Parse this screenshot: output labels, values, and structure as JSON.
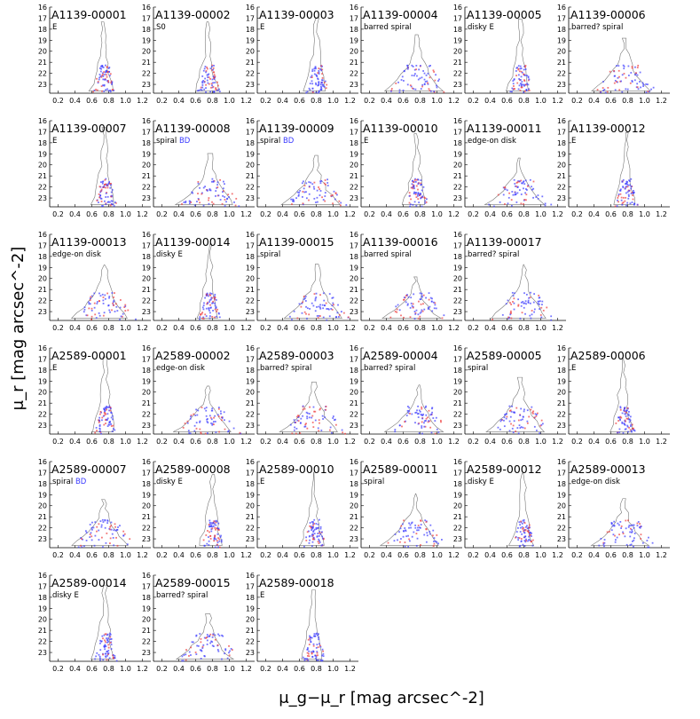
{
  "figure": {
    "ylabel": "μ_r [mag arcsec^-2]",
    "xlabel": "μ_g−μ_r [mag arcsec^-2]",
    "xticks": [
      "0.2",
      "0.4",
      "0.6",
      "0.8",
      "1.0",
      "1.2"
    ],
    "yticks": [
      "16",
      "17",
      "18",
      "19",
      "20",
      "21",
      "22",
      "23"
    ],
    "colors": {
      "red": "#ee3b3b",
      "blue": "#3a3aff",
      "contour": "#777777"
    }
  },
  "chart_data": [
    {
      "type": "scatter",
      "title": "A1139-00001",
      "galaxy_type": "E",
      "xlim": [
        0.1,
        1.3
      ],
      "ylim": [
        23.8,
        16
      ]
    },
    {
      "type": "scatter",
      "title": "A1139-00002",
      "galaxy_type": "S0",
      "xlim": [
        0.1,
        1.3
      ],
      "ylim": [
        23.8,
        16
      ]
    },
    {
      "type": "scatter",
      "title": "A1139-00003",
      "galaxy_type": "E",
      "xlim": [
        0.1,
        1.3
      ],
      "ylim": [
        23.8,
        16
      ]
    },
    {
      "type": "scatter",
      "title": "A1139-00004",
      "galaxy_type": "barred spiral",
      "xlim": [
        0.1,
        1.3
      ],
      "ylim": [
        23.8,
        16
      ]
    },
    {
      "type": "scatter",
      "title": "A1139-00005",
      "galaxy_type": "disky E",
      "xlim": [
        0.1,
        1.3
      ],
      "ylim": [
        23.8,
        16
      ]
    },
    {
      "type": "scatter",
      "title": "A1139-00006",
      "galaxy_type": "barred? spiral",
      "xlim": [
        0.1,
        1.3
      ],
      "ylim": [
        23.8,
        16
      ]
    },
    {
      "type": "scatter",
      "title": "A1139-00007",
      "galaxy_type": "E",
      "xlim": [
        0.1,
        1.3
      ],
      "ylim": [
        23.8,
        16
      ]
    },
    {
      "type": "scatter",
      "title": "A1139-00008",
      "galaxy_type": "spiral",
      "bd": "BD",
      "xlim": [
        0.1,
        1.3
      ],
      "ylim": [
        23.8,
        16
      ]
    },
    {
      "type": "scatter",
      "title": "A1139-00009",
      "galaxy_type": "spiral",
      "bd": "BD",
      "xlim": [
        0.1,
        1.3
      ],
      "ylim": [
        23.8,
        16
      ]
    },
    {
      "type": "scatter",
      "title": "A1139-00010",
      "galaxy_type": "E",
      "xlim": [
        0.1,
        1.3
      ],
      "ylim": [
        23.8,
        16
      ]
    },
    {
      "type": "scatter",
      "title": "A1139-00011",
      "galaxy_type": "edge-on disk",
      "xlim": [
        0.1,
        1.3
      ],
      "ylim": [
        23.8,
        16
      ]
    },
    {
      "type": "scatter",
      "title": "A1139-00012",
      "galaxy_type": "E",
      "xlim": [
        0.1,
        1.3
      ],
      "ylim": [
        23.8,
        16
      ]
    },
    {
      "type": "scatter",
      "title": "A1139-00013",
      "galaxy_type": "edge-on disk",
      "xlim": [
        0.1,
        1.3
      ],
      "ylim": [
        23.8,
        16
      ]
    },
    {
      "type": "scatter",
      "title": "A1139-00014",
      "galaxy_type": "disky E",
      "xlim": [
        0.1,
        1.3
      ],
      "ylim": [
        23.8,
        16
      ]
    },
    {
      "type": "scatter",
      "title": "A1139-00015",
      "galaxy_type": "spiral",
      "xlim": [
        0.1,
        1.3
      ],
      "ylim": [
        23.8,
        16
      ]
    },
    {
      "type": "scatter",
      "title": "A1139-00016",
      "galaxy_type": "barred spiral",
      "xlim": [
        0.1,
        1.3
      ],
      "ylim": [
        23.8,
        16
      ]
    },
    {
      "type": "scatter",
      "title": "A1139-00017",
      "galaxy_type": "barred? spiral",
      "xlim": [
        0.1,
        1.3
      ],
      "ylim": [
        23.8,
        16
      ]
    },
    {
      "type": "scatter",
      "title": "A2589-00001",
      "galaxy_type": "E",
      "xlim": [
        0.1,
        1.3
      ],
      "ylim": [
        23.8,
        16
      ]
    },
    {
      "type": "scatter",
      "title": "A2589-00002",
      "galaxy_type": "edge-on disk",
      "xlim": [
        0.1,
        1.3
      ],
      "ylim": [
        23.8,
        16
      ]
    },
    {
      "type": "scatter",
      "title": "A2589-00003",
      "galaxy_type": "barred? spiral",
      "xlim": [
        0.1,
        1.3
      ],
      "ylim": [
        23.8,
        16
      ]
    },
    {
      "type": "scatter",
      "title": "A2589-00004",
      "galaxy_type": "barred? spiral",
      "xlim": [
        0.1,
        1.3
      ],
      "ylim": [
        23.8,
        16
      ]
    },
    {
      "type": "scatter",
      "title": "A2589-00005",
      "galaxy_type": "spiral",
      "xlim": [
        0.1,
        1.3
      ],
      "ylim": [
        23.8,
        16
      ]
    },
    {
      "type": "scatter",
      "title": "A2589-00006",
      "galaxy_type": "E",
      "xlim": [
        0.1,
        1.3
      ],
      "ylim": [
        23.8,
        16
      ]
    },
    {
      "type": "scatter",
      "title": "A2589-00007",
      "galaxy_type": "spiral",
      "bd": "BD",
      "xlim": [
        0.1,
        1.3
      ],
      "ylim": [
        23.8,
        16
      ]
    },
    {
      "type": "scatter",
      "title": "A2589-00008",
      "galaxy_type": "disky E",
      "xlim": [
        0.1,
        1.3
      ],
      "ylim": [
        23.8,
        16
      ]
    },
    {
      "type": "scatter",
      "title": "A2589-00010",
      "galaxy_type": "E",
      "xlim": [
        0.1,
        1.3
      ],
      "ylim": [
        23.8,
        16
      ]
    },
    {
      "type": "scatter",
      "title": "A2589-00011",
      "galaxy_type": "spiral",
      "xlim": [
        0.1,
        1.3
      ],
      "ylim": [
        23.8,
        16
      ]
    },
    {
      "type": "scatter",
      "title": "A2589-00012",
      "galaxy_type": "disky E",
      "xlim": [
        0.1,
        1.3
      ],
      "ylim": [
        23.8,
        16
      ]
    },
    {
      "type": "scatter",
      "title": "A2589-00013",
      "galaxy_type": "edge-on disk",
      "xlim": [
        0.1,
        1.3
      ],
      "ylim": [
        23.8,
        16
      ]
    },
    {
      "type": "scatter",
      "title": "A2589-00014",
      "galaxy_type": "disky E",
      "xlim": [
        0.1,
        1.3
      ],
      "ylim": [
        23.8,
        16
      ]
    },
    {
      "type": "scatter",
      "title": "A2589-00015",
      "galaxy_type": "barred? spiral",
      "xlim": [
        0.1,
        1.3
      ],
      "ylim": [
        23.8,
        16
      ]
    },
    {
      "type": "scatter",
      "title": "A2589-00018",
      "galaxy_type": "E",
      "xlim": [
        0.1,
        1.3
      ],
      "ylim": [
        23.8,
        16
      ]
    }
  ]
}
